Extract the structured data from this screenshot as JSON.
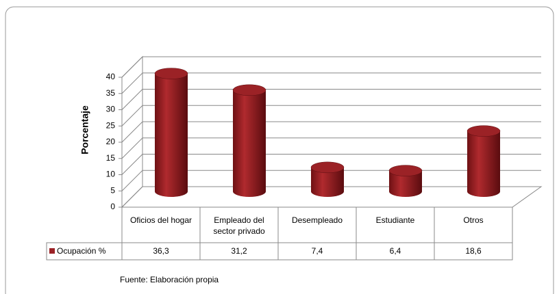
{
  "chart_data": {
    "type": "bar",
    "ylabel": "Porcentaje",
    "categories": [
      "Oficios del hogar",
      "Empleado del sector privado",
      "Desempleado",
      "Estudiante",
      "Otros"
    ],
    "series": [
      {
        "name": "Ocupación %",
        "color": "#9b2226",
        "values": [
          36.3,
          31.2,
          7.4,
          6.4,
          18.6
        ],
        "value_labels": [
          "36,3",
          "31,2",
          "7,4",
          "6,4",
          "18,6"
        ]
      }
    ],
    "ylim": [
      0,
      40
    ],
    "yticks": [
      0,
      5,
      10,
      15,
      20,
      25,
      30,
      35,
      40
    ],
    "grid": true,
    "note": "Fuente: Elaboración propia"
  }
}
